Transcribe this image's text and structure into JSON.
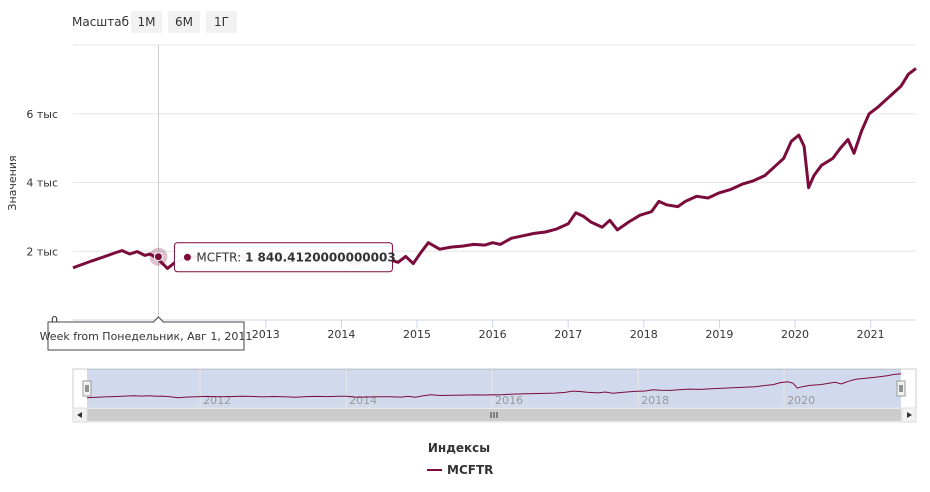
{
  "zoom": {
    "label": "Масштаб",
    "buttons": [
      "1М",
      "6М",
      "1Г"
    ]
  },
  "chart_data": {
    "type": "line",
    "title": "",
    "xlabel": "",
    "ylabel": "Значения",
    "xlim": [
      2010.45,
      2021.6
    ],
    "ylim": [
      0,
      8000
    ],
    "y_ticks": [
      {
        "value": 0,
        "label": "0"
      },
      {
        "value": 2000,
        "label": "2 тыс"
      },
      {
        "value": 4000,
        "label": "4 тыс"
      },
      {
        "value": 6000,
        "label": "6 тыс"
      }
    ],
    "x_ticks": [
      {
        "value": 2013,
        "label": "2013"
      },
      {
        "value": 2014,
        "label": "2014"
      },
      {
        "value": 2015,
        "label": "2015"
      },
      {
        "value": 2016,
        "label": "2016"
      },
      {
        "value": 2017,
        "label": "2017"
      },
      {
        "value": 2018,
        "label": "2018"
      },
      {
        "value": 2019,
        "label": "2019"
      },
      {
        "value": 2020,
        "label": "2020"
      },
      {
        "value": 2021,
        "label": "2021"
      }
    ],
    "grid": true,
    "series": [
      {
        "name": "MCFTR",
        "color": "#7b0b3c",
        "points": [
          [
            2010.45,
            1520
          ],
          [
            2010.55,
            1600
          ],
          [
            2010.7,
            1720
          ],
          [
            2010.85,
            1830
          ],
          [
            2011.0,
            1950
          ],
          [
            2011.1,
            2020
          ],
          [
            2011.2,
            1920
          ],
          [
            2011.3,
            1990
          ],
          [
            2011.4,
            1880
          ],
          [
            2011.47,
            1920
          ],
          [
            2011.53,
            1840
          ],
          [
            2011.6,
            1720
          ],
          [
            2011.7,
            1500
          ],
          [
            2011.8,
            1680
          ],
          [
            2011.95,
            1780
          ],
          [
            2012.1,
            1850
          ],
          [
            2012.25,
            1740
          ],
          [
            2012.4,
            1800
          ],
          [
            2012.55,
            1860
          ],
          [
            2012.7,
            1840
          ],
          [
            2012.85,
            1720
          ],
          [
            2013.0,
            1820
          ],
          [
            2013.15,
            1780
          ],
          [
            2013.3,
            1660
          ],
          [
            2013.45,
            1800
          ],
          [
            2013.6,
            1840
          ],
          [
            2013.75,
            1800
          ],
          [
            2013.9,
            1860
          ],
          [
            2014.0,
            1880
          ],
          [
            2014.15,
            1620
          ],
          [
            2014.3,
            1700
          ],
          [
            2014.45,
            1760
          ],
          [
            2014.6,
            1780
          ],
          [
            2014.75,
            1680
          ],
          [
            2014.85,
            1850
          ],
          [
            2014.95,
            1640
          ],
          [
            2015.05,
            1960
          ],
          [
            2015.15,
            2250
          ],
          [
            2015.3,
            2060
          ],
          [
            2015.45,
            2120
          ],
          [
            2015.6,
            2150
          ],
          [
            2015.75,
            2200
          ],
          [
            2015.9,
            2180
          ],
          [
            2016.0,
            2250
          ],
          [
            2016.1,
            2200
          ],
          [
            2016.25,
            2380
          ],
          [
            2016.4,
            2450
          ],
          [
            2016.55,
            2520
          ],
          [
            2016.7,
            2560
          ],
          [
            2016.85,
            2650
          ],
          [
            2017.0,
            2800
          ],
          [
            2017.1,
            3120
          ],
          [
            2017.2,
            3020
          ],
          [
            2017.3,
            2850
          ],
          [
            2017.45,
            2700
          ],
          [
            2017.55,
            2900
          ],
          [
            2017.65,
            2620
          ],
          [
            2017.8,
            2850
          ],
          [
            2017.95,
            3050
          ],
          [
            2018.1,
            3150
          ],
          [
            2018.2,
            3450
          ],
          [
            2018.3,
            3350
          ],
          [
            2018.45,
            3300
          ],
          [
            2018.55,
            3450
          ],
          [
            2018.7,
            3600
          ],
          [
            2018.85,
            3550
          ],
          [
            2019.0,
            3700
          ],
          [
            2019.15,
            3800
          ],
          [
            2019.3,
            3950
          ],
          [
            2019.45,
            4050
          ],
          [
            2019.6,
            4200
          ],
          [
            2019.75,
            4500
          ],
          [
            2019.85,
            4700
          ],
          [
            2019.95,
            5200
          ],
          [
            2020.05,
            5380
          ],
          [
            2020.12,
            5050
          ],
          [
            2020.18,
            3850
          ],
          [
            2020.25,
            4200
          ],
          [
            2020.35,
            4500
          ],
          [
            2020.5,
            4700
          ],
          [
            2020.6,
            5000
          ],
          [
            2020.7,
            5250
          ],
          [
            2020.78,
            4850
          ],
          [
            2020.88,
            5500
          ],
          [
            2020.98,
            6000
          ],
          [
            2021.1,
            6200
          ],
          [
            2021.25,
            6500
          ],
          [
            2021.4,
            6800
          ],
          [
            2021.5,
            7150
          ],
          [
            2021.6,
            7320
          ]
        ]
      }
    ],
    "tooltip": {
      "series_name": "MCFTR",
      "label": "MCFTR: ",
      "value_text": "1 840.4120000000003",
      "x": 2011.58,
      "y": 1840,
      "x_label": "Week from Понедельник, Авг 1, 2011"
    },
    "navigator": {
      "x_ticks": [
        {
          "value": 2012,
          "label": "2012"
        },
        {
          "value": 2014,
          "label": "2014"
        },
        {
          "value": 2016,
          "label": "2016"
        },
        {
          "value": 2018,
          "label": "2018"
        },
        {
          "value": 2020,
          "label": "2020"
        }
      ]
    },
    "legend": {
      "title": "Индексы",
      "position": "bottom-center",
      "items": [
        "MCFTR"
      ]
    }
  }
}
